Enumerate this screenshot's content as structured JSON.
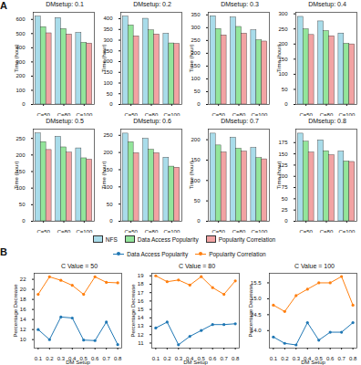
{
  "chart_data": [
    {
      "type": "bar",
      "title": "DMsetup: 0.1",
      "annotations": [
        "A"
      ],
      "y_label": "Time (hour)",
      "categories": [
        "C=50",
        "C=80",
        "C=100"
      ],
      "series": [
        {
          "name": "NFS",
          "color": "#a9dcea",
          "values": [
            620,
            610,
            505
          ]
        },
        {
          "name": "Data Access Popularity",
          "color": "#93e59b",
          "values": [
            546,
            532,
            435
          ]
        },
        {
          "name": "Popularity Correlation",
          "color": "#f2a3a3",
          "values": [
            502,
            494,
            430
          ]
        }
      ],
      "ylim": [
        0,
        650
      ],
      "yticks": [
        0,
        100,
        200,
        300,
        400,
        500,
        600
      ],
      "grid": false,
      "legend": "bottom"
    },
    {
      "type": "bar",
      "title": "DMsetup: 0.2",
      "y_label": "Time (hour)",
      "categories": [
        "C=50",
        "C=80",
        "C=100"
      ],
      "series": [
        {
          "name": "NFS",
          "color": "#a9dcea",
          "values": [
            410,
            400,
            330
          ]
        },
        {
          "name": "Data Access Popularity",
          "color": "#93e59b",
          "values": [
            369,
            346,
            285
          ]
        },
        {
          "name": "Popularity Correlation",
          "color": "#f2a3a3",
          "values": [
            318,
            327,
            283
          ]
        }
      ],
      "ylim": [
        0,
        430
      ],
      "yticks": [
        0,
        50,
        100,
        150,
        200,
        250,
        300,
        350,
        400
      ],
      "grid": false
    },
    {
      "type": "bar",
      "title": "DMsetup: 0.3",
      "y_label": "Time (hour)",
      "categories": [
        "C=50",
        "C=80",
        "C=100"
      ],
      "series": [
        {
          "name": "NFS",
          "color": "#a9dcea",
          "values": [
            345,
            340,
            290
          ]
        },
        {
          "name": "Data Access Popularity",
          "color": "#93e59b",
          "values": [
            295,
            303,
            251
          ]
        },
        {
          "name": "Popularity Correlation",
          "color": "#f2a3a3",
          "values": [
            270,
            277,
            246
          ]
        }
      ],
      "ylim": [
        0,
        360
      ],
      "yticks": [
        0,
        50,
        100,
        150,
        200,
        250,
        300,
        350
      ],
      "grid": false
    },
    {
      "type": "bar",
      "title": "DMsetup: 0.4",
      "y_label": "Time (hour)",
      "categories": [
        "C=50",
        "C=80",
        "C=100"
      ],
      "series": [
        {
          "name": "NFS",
          "color": "#a9dcea",
          "values": [
            290,
            275,
            235
          ]
        },
        {
          "name": "Data Access Popularity",
          "color": "#93e59b",
          "values": [
            249,
            243,
            201
          ]
        },
        {
          "name": "Popularity Correlation",
          "color": "#f2a3a3",
          "values": [
            230,
            226,
            199
          ]
        }
      ],
      "ylim": [
        0,
        305
      ],
      "yticks": [
        0,
        50,
        100,
        150,
        200,
        250,
        300
      ],
      "grid": false
    },
    {
      "type": "bar",
      "title": "DMsetup: 0.5",
      "y_label": "Time (hour)",
      "categories": [
        "C=50",
        "C=80",
        "C=100"
      ],
      "series": [
        {
          "name": "NFS",
          "color": "#a9dcea",
          "values": [
            265,
            255,
            220
          ]
        },
        {
          "name": "Data Access Popularity",
          "color": "#93e59b",
          "values": [
            239,
            223,
            190
          ]
        },
        {
          "name": "Popularity Correlation",
          "color": "#f2a3a3",
          "values": [
            215,
            207,
            186
          ]
        }
      ],
      "ylim": [
        0,
        278
      ],
      "yticks": [
        0,
        50,
        100,
        150,
        200,
        250
      ],
      "grid": false
    },
    {
      "type": "bar",
      "title": "DMsetup: 0.6",
      "y_label": "Time (hour)",
      "categories": [
        "C=50",
        "C=80",
        "C=100"
      ],
      "series": [
        {
          "name": "NFS",
          "color": "#a9dcea",
          "values": [
            255,
            240,
            185
          ]
        },
        {
          "name": "Data Access Popularity",
          "color": "#93e59b",
          "values": [
            230,
            208,
            159
          ]
        },
        {
          "name": "Popularity Correlation",
          "color": "#f2a3a3",
          "values": [
            198,
            198,
            156
          ]
        }
      ],
      "ylim": [
        0,
        268
      ],
      "yticks": [
        0,
        50,
        100,
        150,
        200,
        250
      ],
      "grid": false
    },
    {
      "type": "bar",
      "title": "DMsetup: 0.7",
      "y_label": "Time (hour)",
      "categories": [
        "C=50",
        "C=80",
        "C=100"
      ],
      "series": [
        {
          "name": "NFS",
          "color": "#a9dcea",
          "values": [
            215,
            205,
            180
          ]
        },
        {
          "name": "Data Access Popularity",
          "color": "#93e59b",
          "values": [
            186,
            178,
            155
          ]
        },
        {
          "name": "Popularity Correlation",
          "color": "#f2a3a3",
          "values": [
            169,
            171,
            152
          ]
        }
      ],
      "ylim": [
        0,
        226
      ],
      "yticks": [
        0,
        50,
        100,
        150,
        200
      ],
      "grid": false
    },
    {
      "type": "bar",
      "title": "DMsetup: 0.8",
      "y_label": "Time (hour)",
      "categories": [
        "C=50",
        "C=80",
        "C=100"
      ],
      "series": [
        {
          "name": "NFS",
          "color": "#a9dcea",
          "values": [
            195,
            180,
            155
          ]
        },
        {
          "name": "Data Access Popularity",
          "color": "#93e59b",
          "values": [
            177,
            156,
            133
          ]
        },
        {
          "name": "Popularity Correlation",
          "color": "#f2a3a3",
          "values": [
            153,
            147,
            132
          ]
        }
      ],
      "ylim": [
        0,
        205
      ],
      "yticks": [
        0,
        25,
        50,
        75,
        100,
        125,
        150,
        175
      ],
      "grid": false
    },
    {
      "type": "line",
      "title": "C Value = 50",
      "annotations": [
        "B"
      ],
      "x_label": "DM Setup",
      "y_label": "Percentage Decrease",
      "x": [
        0.1,
        0.2,
        0.3,
        0.4,
        0.5,
        0.6,
        0.7,
        0.8
      ],
      "series": [
        {
          "name": "Data Access Popularity",
          "color": "#1f77b4",
          "marker": "circle",
          "values": [
            12.0,
            10.0,
            14.5,
            14.3,
            9.9,
            9.8,
            13.5,
            9.0
          ]
        },
        {
          "name": "Popularity Correlation",
          "color": "#ff7f0e",
          "marker": "circle",
          "values": [
            19.0,
            22.5,
            21.8,
            20.8,
            19.0,
            22.5,
            21.4,
            21.3
          ]
        }
      ],
      "xlim": [
        0.065,
        0.835
      ],
      "xticks": [
        0.1,
        0.2,
        0.3,
        0.4,
        0.5,
        0.6,
        0.7,
        0.8
      ],
      "ylim": [
        8.3,
        23.2
      ],
      "yticks": [
        10,
        12,
        14,
        16,
        18,
        20,
        22
      ],
      "grid": false,
      "legend": "top"
    },
    {
      "type": "line",
      "title": "C Value = 80",
      "x_label": "DM Setup",
      "y_label": "Percentage Decrease",
      "x": [
        0.1,
        0.2,
        0.3,
        0.4,
        0.5,
        0.6,
        0.7,
        0.8
      ],
      "series": [
        {
          "name": "Data Access Popularity",
          "color": "#1f77b4",
          "marker": "circle",
          "values": [
            12.8,
            13.5,
            10.8,
            11.8,
            12.5,
            13.2,
            13.2,
            13.3
          ]
        },
        {
          "name": "Popularity Correlation",
          "color": "#ff7f0e",
          "marker": "circle",
          "values": [
            19.0,
            18.3,
            18.5,
            17.9,
            18.9,
            17.6,
            16.8,
            18.4
          ]
        }
      ],
      "xlim": [
        0.065,
        0.835
      ],
      "xticks": [
        0.1,
        0.2,
        0.3,
        0.4,
        0.5,
        0.6,
        0.7,
        0.8
      ],
      "ylim": [
        10.4,
        19.3
      ],
      "yticks": [
        11,
        12,
        13,
        14,
        15,
        16,
        17,
        18,
        19
      ],
      "grid": false
    },
    {
      "type": "line",
      "title": "C Value = 100",
      "x_label": "DM Setup",
      "y_label": "Percentage Decrease",
      "x": [
        0.1,
        0.2,
        0.3,
        0.4,
        0.5,
        0.6,
        0.7,
        0.8
      ],
      "series": [
        {
          "name": "Data Access Popularity",
          "color": "#1f77b4",
          "marker": "circle",
          "values": [
            13.8,
            13.6,
            13.55,
            14.25,
            13.7,
            13.95,
            13.95,
            14.25
          ]
        },
        {
          "name": "Popularity Correlation",
          "color": "#ff7f0e",
          "marker": "circle",
          "values": [
            14.8,
            14.6,
            15.1,
            15.3,
            15.5,
            15.5,
            15.7,
            14.8
          ]
        }
      ],
      "xlim": [
        0.065,
        0.835
      ],
      "xticks": [
        0.1,
        0.2,
        0.3,
        0.4,
        0.5,
        0.6,
        0.7,
        0.8
      ],
      "ylim": [
        13.45,
        15.8
      ],
      "yticks": [
        {
          "value": 14,
          "label": "14.0"
        },
        {
          "value": 14.5,
          "label": "14.5"
        },
        {
          "value": 15,
          "label": "15.0"
        },
        {
          "value": 15.5,
          "label": "15.5"
        }
      ],
      "grid": false
    }
  ]
}
